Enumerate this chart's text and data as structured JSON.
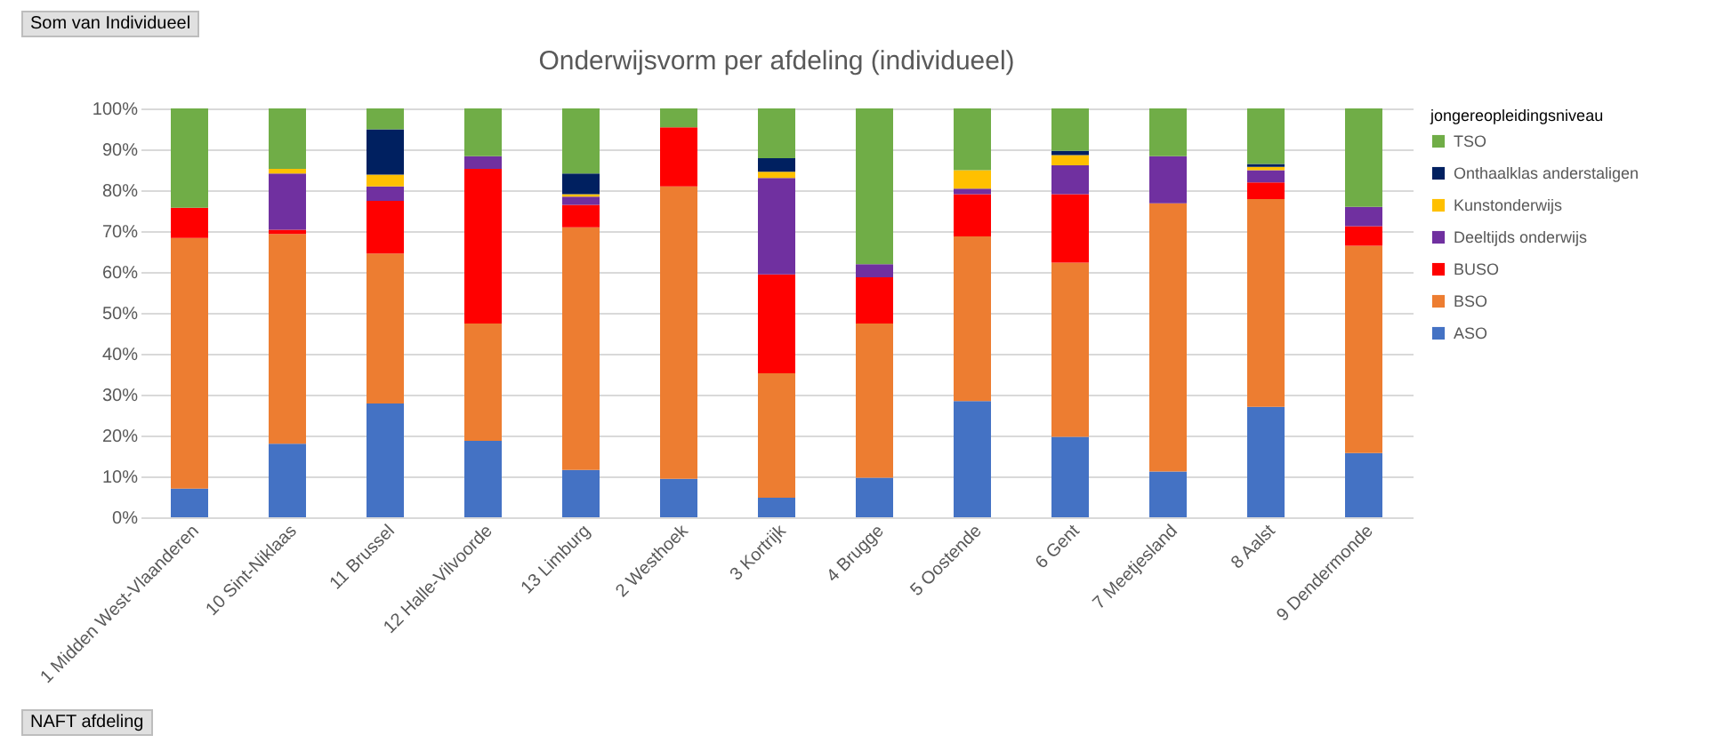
{
  "chart_data": {
    "type": "bar",
    "title": "Onderwijsvorm per afdeling (individueel)",
    "legend_title": "jongereopleidingsniveau",
    "annotations": [
      "Som van Individueel",
      "NAFT afdeling"
    ],
    "categories": [
      "1 Midden West-Vlaanderen",
      "10 Sint-Niklaas",
      "11 Brussel",
      "12 Halle-Vilvoorde",
      "13 Limburg",
      "2 Westhoek",
      "3 Kortrijk",
      "4 Brugge",
      "5 Oostende",
      "6 Gent",
      "7 Meetjesland",
      "8 Aalst",
      "9 Dendermonde"
    ],
    "stacked": true,
    "legend": "right",
    "grid": "y",
    "ylim": [
      0,
      100
    ],
    "yticks": [
      {
        "value": 0,
        "label": "0%"
      },
      {
        "value": 10,
        "label": "10%"
      },
      {
        "value": 20,
        "label": "20%"
      },
      {
        "value": 30,
        "label": "30%"
      },
      {
        "value": 40,
        "label": "40%"
      },
      {
        "value": 50,
        "label": "50%"
      },
      {
        "value": 60,
        "label": "60%"
      },
      {
        "value": 70,
        "label": "70%"
      },
      {
        "value": 80,
        "label": "80%"
      },
      {
        "value": 90,
        "label": "90%"
      },
      {
        "value": 100,
        "label": "100%"
      }
    ],
    "series": [
      {
        "name": "ASO",
        "color": "#4472c4",
        "values": [
          7.0,
          18.0,
          27.8,
          18.7,
          11.6,
          9.4,
          4.8,
          9.7,
          28.4,
          19.7,
          11.2,
          27.0,
          15.7
        ]
      },
      {
        "name": "BSO",
        "color": "#ed7d31",
        "values": [
          61.3,
          51.3,
          36.7,
          28.7,
          59.3,
          71.5,
          30.4,
          37.7,
          40.3,
          42.6,
          65.6,
          50.8,
          50.7
        ]
      },
      {
        "name": "BUSO",
        "color": "#ff0000",
        "values": [
          7.4,
          1.0,
          12.9,
          37.8,
          5.5,
          14.5,
          24.2,
          11.3,
          10.3,
          16.7,
          null,
          4.1,
          4.8
        ]
      },
      {
        "name": "Deeltijds onderwijs",
        "color": "#7030a0",
        "values": [
          null,
          13.8,
          3.5,
          3.1,
          2.0,
          null,
          23.6,
          3.2,
          1.4,
          7.1,
          11.5,
          3.0,
          4.7
        ]
      },
      {
        "name": "Kunstonderwijs",
        "color": "#ffc000",
        "values": [
          null,
          1.1,
          2.9,
          null,
          0.6,
          null,
          1.5,
          null,
          4.5,
          2.5,
          null,
          0.8,
          null
        ]
      },
      {
        "name": "Onthaalklas anderstaligen",
        "color": "#002060",
        "values": [
          null,
          null,
          11.1,
          null,
          5.1,
          null,
          3.3,
          null,
          null,
          1.0,
          null,
          0.7,
          null
        ]
      },
      {
        "name": "TSO",
        "color": "#70ad47",
        "values": [
          24.3,
          14.8,
          5.1,
          11.7,
          15.9,
          4.6,
          12.2,
          38.1,
          15.1,
          10.4,
          11.7,
          13.6,
          24.1
        ]
      }
    ]
  }
}
